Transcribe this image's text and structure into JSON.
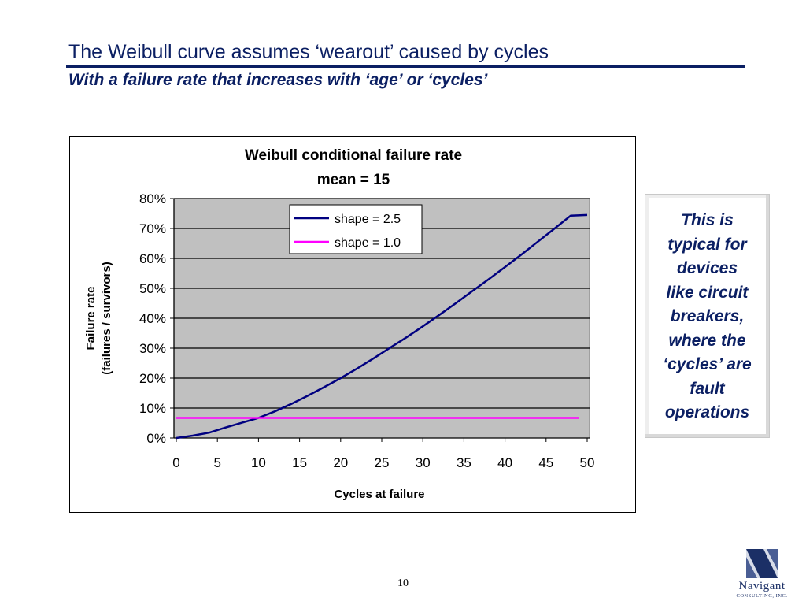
{
  "slide": {
    "title": "The Weibull curve assumes ‘wearout’ caused by cycles",
    "subtitle": "With a failure rate that increases with ‘age’ or ‘cycles’",
    "page_number": "10"
  },
  "callout": {
    "lines": [
      "This is",
      "typical for",
      "devices",
      "like circuit",
      "breakers,",
      "where the",
      "‘cycles’ are",
      "fault",
      "operations"
    ]
  },
  "logo": {
    "name": "Navigant",
    "tagline": "CONSULTING, INC."
  },
  "colors": {
    "title": "#0b1f63",
    "plot_area": "#c0c0c0",
    "series_shape_2_5": "#000080",
    "series_shape_1_0": "#ff00ff"
  },
  "chart_data": {
    "type": "line",
    "title": "Weibull conditional failure rate",
    "subtitle": "mean = 15",
    "xlabel": "Cycles at failure",
    "ylabel": "Failure rate",
    "ylabel2": "(failures / survivors)",
    "xlim": [
      0,
      50
    ],
    "ylim": [
      0,
      0.8
    ],
    "x_ticks": [
      "0",
      "5",
      "10",
      "15",
      "20",
      "25",
      "30",
      "35",
      "40",
      "45",
      "50"
    ],
    "y_ticks": [
      "0%",
      "10%",
      "20%",
      "30%",
      "40%",
      "50%",
      "60%",
      "70%",
      "80%"
    ],
    "grid": "horizontal",
    "legend_position": "top-right",
    "series": [
      {
        "name": "shape = 2.5",
        "x": [
          0,
          2,
          4,
          6,
          8,
          10,
          12,
          14,
          16,
          18,
          20,
          22,
          24,
          26,
          28,
          30,
          32,
          34,
          36,
          38,
          40,
          42,
          44,
          46,
          48,
          50
        ],
        "values": [
          0.0,
          0.008,
          0.018,
          0.035,
          0.051,
          0.067,
          0.089,
          0.114,
          0.141,
          0.17,
          0.2,
          0.232,
          0.266,
          0.301,
          0.336,
          0.373,
          0.411,
          0.45,
          0.49,
          0.53,
          0.571,
          0.613,
          0.656,
          0.699,
          0.743,
          0.745
        ]
      },
      {
        "name": "shape = 1.0",
        "x": [
          0,
          50
        ],
        "values": [
          0.067,
          0.067
        ]
      }
    ]
  }
}
